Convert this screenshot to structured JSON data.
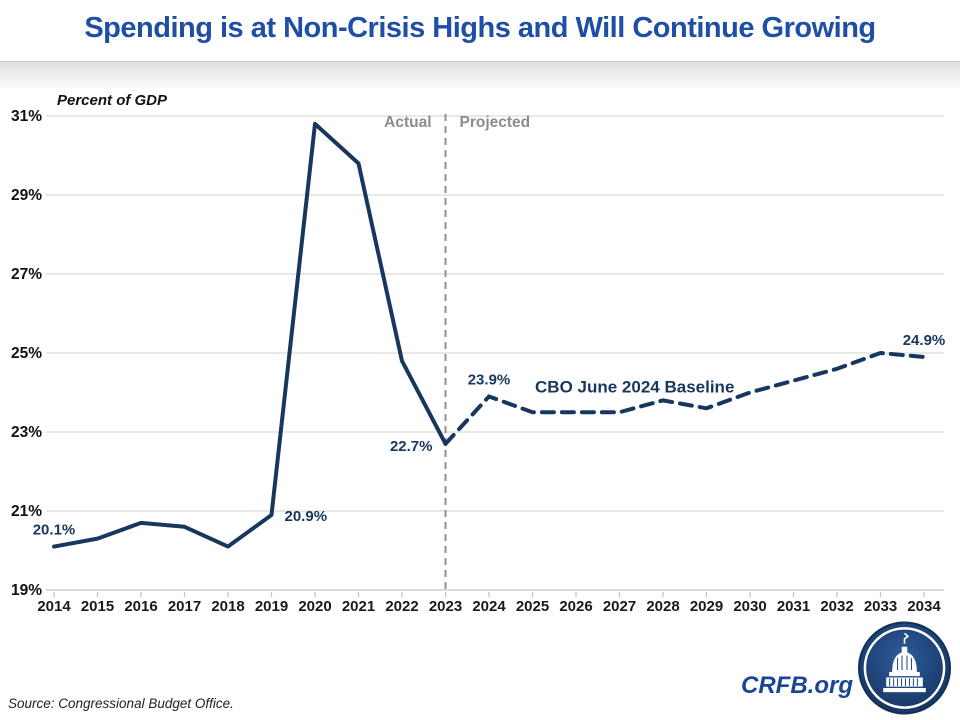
{
  "header": {
    "title": "Spending is at Non-Crisis Highs and Will Continue Growing"
  },
  "colors": {
    "title_blue": "#1E4EA6",
    "line_navy": "#17375E",
    "label_navy": "#17375E",
    "muted_gray": "#8C8C8C",
    "grid_gray": "#D9D9D9",
    "axis_gray": "#C2C2C2",
    "logo_navy": "#16345E"
  },
  "chart_data": {
    "type": "line",
    "title": "Spending is at Non-Crisis Highs and Will Continue Growing",
    "ylabel": "Percent of GDP",
    "xlabel": "",
    "ylim": [
      19,
      31
    ],
    "ytick_step": 2,
    "ytick_suffix": "%",
    "xlim": [
      2014,
      2034
    ],
    "grid": "horizontal",
    "legend_position": "none",
    "divider": {
      "year": 2023,
      "left_label": "Actual",
      "right_label": "Projected"
    },
    "series": [
      {
        "name": "Actual",
        "style": "solid",
        "years": [
          2014,
          2015,
          2016,
          2017,
          2018,
          2019,
          2020,
          2021,
          2022,
          2023
        ],
        "values": [
          20.1,
          20.3,
          20.7,
          20.6,
          20.1,
          20.9,
          30.8,
          29.8,
          24.8,
          22.7
        ]
      },
      {
        "name": "CBO June 2024 Baseline",
        "style": "dashed",
        "years": [
          2023,
          2024,
          2025,
          2026,
          2027,
          2028,
          2029,
          2030,
          2031,
          2032,
          2033,
          2034
        ],
        "values": [
          22.7,
          23.9,
          23.5,
          23.5,
          23.5,
          23.8,
          23.6,
          24.0,
          24.3,
          24.6,
          25.0,
          24.9
        ]
      }
    ],
    "series_label": {
      "text": "CBO June 2024 Baseline",
      "year": 2027.35,
      "value": 24.0
    },
    "point_labels": [
      {
        "text": "20.1%",
        "year": 2014,
        "value": 20.1,
        "placement": "above"
      },
      {
        "text": "20.9%",
        "year": 2019,
        "value": 20.9,
        "placement": "right"
      },
      {
        "text": "22.7%",
        "year": 2023,
        "value": 22.7,
        "placement": "left"
      },
      {
        "text": "23.9%",
        "year": 2024,
        "value": 23.9,
        "placement": "above"
      },
      {
        "text": "24.9%",
        "year": 2034,
        "value": 24.9,
        "placement": "above"
      }
    ]
  },
  "footer": {
    "source": "Source: Congressional Budget Office.",
    "site": "CRFB.org",
    "logo": "capitol-icon"
  }
}
